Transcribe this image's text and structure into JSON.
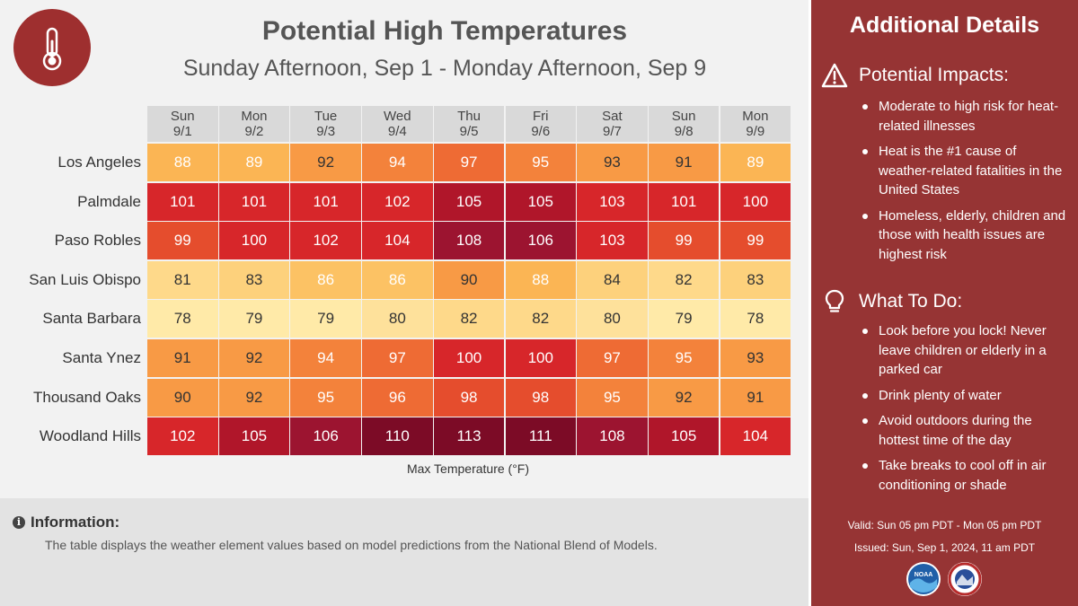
{
  "title": "Potential High Temperatures",
  "subtitle": "Sunday Afternoon, Sep 1 - Monday Afternoon, Sep 9",
  "chart_data": {
    "type": "heatmap",
    "title": "Potential High Temperatures",
    "xlabel": "Max Temperature (°F)",
    "columns": [
      {
        "day": "Sun",
        "date": "9/1"
      },
      {
        "day": "Mon",
        "date": "9/2"
      },
      {
        "day": "Tue",
        "date": "9/3"
      },
      {
        "day": "Wed",
        "date": "9/4"
      },
      {
        "day": "Thu",
        "date": "9/5"
      },
      {
        "day": "Fri",
        "date": "9/6"
      },
      {
        "day": "Sat",
        "date": "9/7"
      },
      {
        "day": "Sun",
        "date": "9/8"
      },
      {
        "day": "Mon",
        "date": "9/9"
      }
    ],
    "rows": [
      {
        "location": "Los Angeles",
        "values": [
          88,
          89,
          92,
          94,
          97,
          95,
          93,
          91,
          89
        ]
      },
      {
        "location": "Palmdale",
        "values": [
          101,
          101,
          101,
          102,
          105,
          105,
          103,
          101,
          100
        ]
      },
      {
        "location": "Paso Robles",
        "values": [
          99,
          100,
          102,
          104,
          108,
          106,
          103,
          99,
          99
        ]
      },
      {
        "location": "San Luis Obispo",
        "values": [
          81,
          83,
          86,
          86,
          90,
          88,
          84,
          82,
          83
        ]
      },
      {
        "location": "Santa Barbara",
        "values": [
          78,
          79,
          79,
          80,
          82,
          82,
          80,
          79,
          78
        ]
      },
      {
        "location": "Santa Ynez",
        "values": [
          91,
          92,
          94,
          97,
          100,
          100,
          97,
          95,
          93
        ]
      },
      {
        "location": "Thousand Oaks",
        "values": [
          90,
          92,
          95,
          96,
          98,
          98,
          95,
          92,
          91
        ]
      },
      {
        "location": "Woodland Hills",
        "values": [
          102,
          105,
          106,
          110,
          113,
          111,
          108,
          105,
          104
        ]
      }
    ]
  },
  "info": {
    "title": "Information:",
    "text": "The table displays the weather element values based on model predictions from the National Blend of Models."
  },
  "sidebar": {
    "title": "Additional Details",
    "impacts_title": "Potential Impacts:",
    "impacts": [
      "Moderate to high risk for heat-related illnesses",
      "Heat is the #1 cause of weather-related fatalities in the United States",
      "Homeless, elderly, children and those with health issues are highest risk"
    ],
    "todo_title": "What To Do:",
    "todo": [
      "Look before you lock! Never leave children or elderly in a parked car",
      "Drink plenty of water",
      "Avoid outdoors during the hottest time of the day",
      "Take breaks to cool off in air conditioning or shade"
    ],
    "valid": "Valid: Sun 05 pm PDT - Mon 05 pm PDT",
    "issued": "Issued: Sun, Sep 1, 2024, 11 am PDT",
    "logo_noaa": "NOAA"
  },
  "colors": {
    "sidebar_bg": "#963434",
    "icon_circle": "#9e2f2f"
  }
}
